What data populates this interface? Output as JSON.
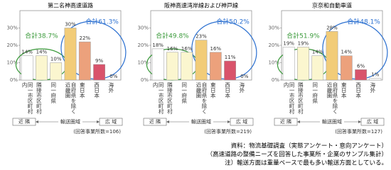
{
  "chart_data": [
    {
      "type": "bar",
      "title": "第二名神高速道路",
      "categories": [
        "同一市区町村内",
        "隣接市区町村",
        "同一府県",
        "自府県を除く近畿圏",
        "東日本",
        "西日本",
        "海外"
      ],
      "values": [
        14,
        14,
        10,
        30,
        22,
        9,
        0
      ],
      "value_labels": [
        "14%",
        "14%",
        "10%",
        "30%",
        "22%",
        "9%",
        "0%"
      ],
      "colors": [
        "#ffffff",
        "#fbf6cf",
        "#fbf6cf",
        "#f2cc78",
        "#eca17c",
        "#d9536b",
        "#ffffff"
      ],
      "ylim": [
        0,
        40
      ],
      "yticks": [
        {
          "value": 0,
          "label": "0%"
        },
        {
          "value": 10,
          "label": "10%"
        },
        {
          "value": 20,
          "label": "20%"
        },
        {
          "value": 30,
          "label": "30%"
        }
      ],
      "annotations": [
        {
          "text": "合計38.7%",
          "color": "#3a9a3a"
        },
        {
          "text": "合計61.3%",
          "color": "#2a6fd0"
        }
      ],
      "scope": [
        "近 隣",
        "輸送圏域",
        "広 域"
      ],
      "note": "(回答事業所数=106)"
    },
    {
      "type": "bar",
      "title": "阪神高速湾岸線および神戸線",
      "categories": [
        "同一市区町村内",
        "隣接市区町村",
        "同一府県",
        "自府県を除く近畿圏",
        "東日本",
        "西日本",
        "海外"
      ],
      "values": [
        18,
        16,
        16,
        23,
        16,
        11,
        0
      ],
      "value_labels": [
        "18%",
        "16%",
        "16%",
        "23%",
        "16%",
        "11%",
        "0%"
      ],
      "colors": [
        "#ffffff",
        "#fbf6cf",
        "#fbf6cf",
        "#f2cc78",
        "#eca17c",
        "#d9536b",
        "#ffffff"
      ],
      "ylim": [
        0,
        40
      ],
      "yticks": [
        {
          "value": 0,
          "label": "0%"
        },
        {
          "value": 10,
          "label": "10%"
        },
        {
          "value": 20,
          "label": "20%"
        },
        {
          "value": 30,
          "label": "30%"
        }
      ],
      "annotations": [
        {
          "text": "合計49.8%",
          "color": "#3a9a3a"
        },
        {
          "text": "合計50.2%",
          "color": "#2a6fd0"
        }
      ],
      "scope": [
        "近 隣",
        "輸送圏域",
        "広 域"
      ],
      "note": "(回答事業所数=219)"
    },
    {
      "type": "bar",
      "title": "京奈和自動車道",
      "categories": [
        "同一市区町村内",
        "隣接市区町村",
        "同一府県",
        "自府県を除く近畿圏",
        "東日本",
        "西日本",
        "海外"
      ],
      "values": [
        19,
        19,
        14,
        28,
        14,
        6,
        1
      ],
      "value_labels": [
        "19%",
        "19%",
        "14%",
        "28%",
        "14%",
        "6%",
        "1%"
      ],
      "colors": [
        "#ffffff",
        "#fbf6cf",
        "#fbf6cf",
        "#f2cc78",
        "#eca17c",
        "#d9536b",
        "#ffffff"
      ],
      "ylim": [
        0,
        40
      ],
      "yticks": [
        {
          "value": 0,
          "label": "0%"
        },
        {
          "value": 10,
          "label": "10%"
        },
        {
          "value": 20,
          "label": "20%"
        },
        {
          "value": 30,
          "label": "30%"
        }
      ],
      "annotations": [
        {
          "text": "合計51.9%",
          "color": "#3a9a3a"
        },
        {
          "text": "合計48.1%",
          "color": "#2a6fd0"
        }
      ],
      "scope": [
        "近 隣",
        "輸送圏域",
        "広 域"
      ],
      "note": "(回答事業所数=127)"
    }
  ],
  "source": [
    "資料：物流基礎調査（実態アンケート・意向アンケート）",
    "（高速道路の整備ニーズを回答した事業所・企業のサンプル集計）",
    "注）輸送方面は重量ベースで最も多い輸送方面としている。"
  ]
}
